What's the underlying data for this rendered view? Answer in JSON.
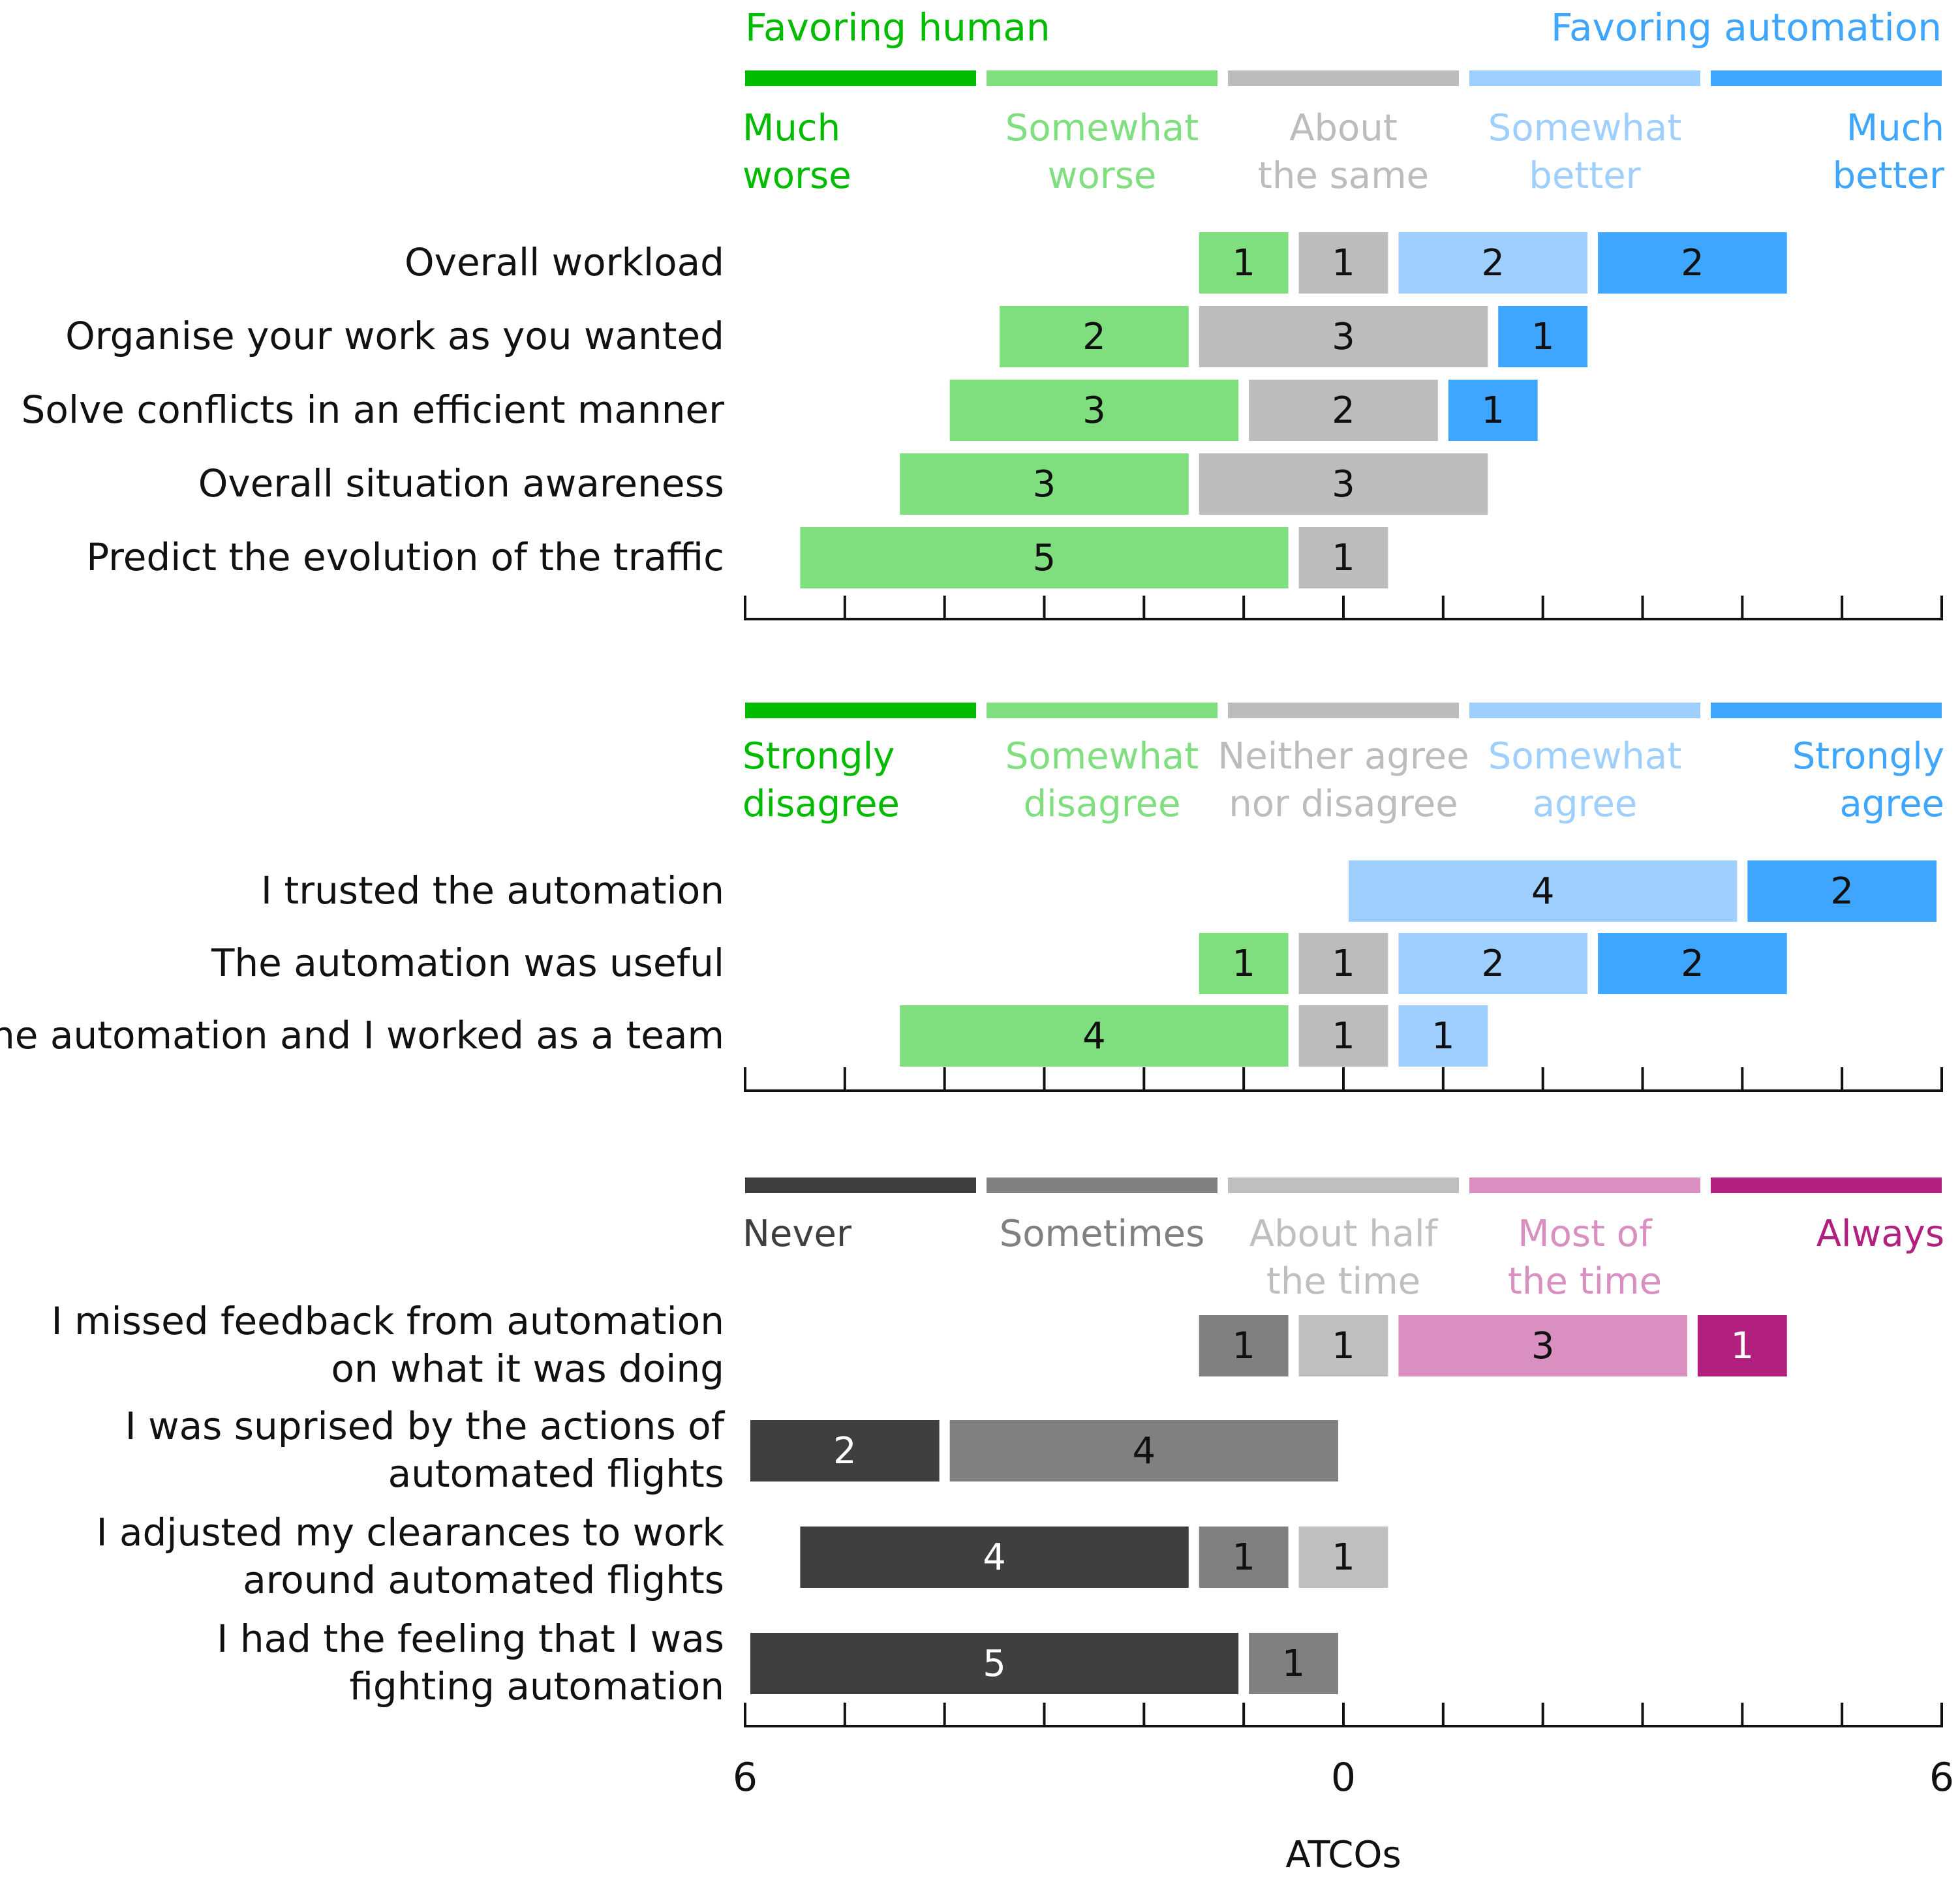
{
  "colors": {
    "much_worse": "#00bb00",
    "somewhat_worse": "#7fdf7f",
    "neutral": "#bcbcbc",
    "somewhat_better": "#9fcfff",
    "much_better": "#3fa6ff",
    "never": "#3f3f3f",
    "sometimes": "#808080",
    "about_half": "#bfbfbf",
    "most_of_time": "#d98fbf",
    "always": "#b11f7f"
  },
  "chart_data": {
    "type": "bar",
    "orientation": "horizontal",
    "layout": "diverging stacked",
    "xlabel": "ATCOs",
    "xlim": [
      -6,
      6
    ],
    "tick_labels": [
      "6",
      "0",
      "6"
    ],
    "panels": [
      {
        "header_left": "Favoring human",
        "header_right": "Favoring automation",
        "scale": [
          {
            "label": [
              "Much",
              "worse"
            ],
            "color": "#00bb00"
          },
          {
            "label": [
              "Somewhat",
              "worse"
            ],
            "color": "#7fdf7f"
          },
          {
            "label": [
              "About",
              "the same"
            ],
            "color": "#bcbcbc"
          },
          {
            "label": [
              "Somewhat",
              "better"
            ],
            "color": "#9fcfff"
          },
          {
            "label": [
              "Much",
              "better"
            ],
            "color": "#3fa6ff"
          }
        ],
        "rows": [
          {
            "label": [
              "Overall workload"
            ],
            "counts": [
              0,
              1,
              1,
              2,
              2
            ]
          },
          {
            "label": [
              "Organise your work as you wanted"
            ],
            "counts": [
              0,
              2,
              3,
              0,
              1
            ]
          },
          {
            "label": [
              "Solve conflicts in an efficient manner"
            ],
            "counts": [
              0,
              3,
              2,
              0,
              1
            ]
          },
          {
            "label": [
              "Overall situation awareness"
            ],
            "counts": [
              0,
              3,
              3,
              0,
              0
            ]
          },
          {
            "label": [
              "Predict the evolution of the traffic"
            ],
            "counts": [
              0,
              5,
              1,
              0,
              0
            ]
          }
        ]
      },
      {
        "scale": [
          {
            "label": [
              "Strongly",
              "disagree"
            ],
            "color": "#00bb00"
          },
          {
            "label": [
              "Somewhat",
              "disagree"
            ],
            "color": "#7fdf7f"
          },
          {
            "label": [
              "Neither agree",
              "nor disagree"
            ],
            "color": "#bcbcbc"
          },
          {
            "label": [
              "Somewhat",
              "agree"
            ],
            "color": "#9fcfff"
          },
          {
            "label": [
              "Strongly",
              "agree"
            ],
            "color": "#3fa6ff"
          }
        ],
        "rows": [
          {
            "label": [
              "I trusted the automation"
            ],
            "counts": [
              0,
              0,
              0,
              4,
              2
            ]
          },
          {
            "label": [
              "The automation was useful"
            ],
            "counts": [
              0,
              1,
              1,
              2,
              2
            ]
          },
          {
            "label": [
              "The automation and I worked as a team"
            ],
            "counts": [
              0,
              4,
              1,
              1,
              0
            ]
          }
        ]
      },
      {
        "scale": [
          {
            "label": [
              "Never"
            ],
            "color": "#3f3f3f"
          },
          {
            "label": [
              "Sometimes"
            ],
            "color": "#808080"
          },
          {
            "label": [
              "About half",
              "the time"
            ],
            "color": "#bfbfbf"
          },
          {
            "label": [
              "Most of",
              "the time"
            ],
            "color": "#d98fbf"
          },
          {
            "label": [
              "Always"
            ],
            "color": "#b11f7f"
          }
        ],
        "rows": [
          {
            "label": [
              "I missed feedback from automation",
              "on what it was doing"
            ],
            "counts": [
              0,
              1,
              1,
              3,
              1
            ]
          },
          {
            "label": [
              "I was suprised by the actions of",
              "automated flights"
            ],
            "counts": [
              2,
              4,
              0,
              0,
              0
            ]
          },
          {
            "label": [
              "I adjusted my clearances to work",
              "around automated flights"
            ],
            "counts": [
              4,
              1,
              1,
              0,
              0
            ]
          },
          {
            "label": [
              "I had the feeling that I was",
              "fighting automation"
            ],
            "counts": [
              5,
              1,
              0,
              0,
              0
            ]
          }
        ]
      }
    ]
  }
}
